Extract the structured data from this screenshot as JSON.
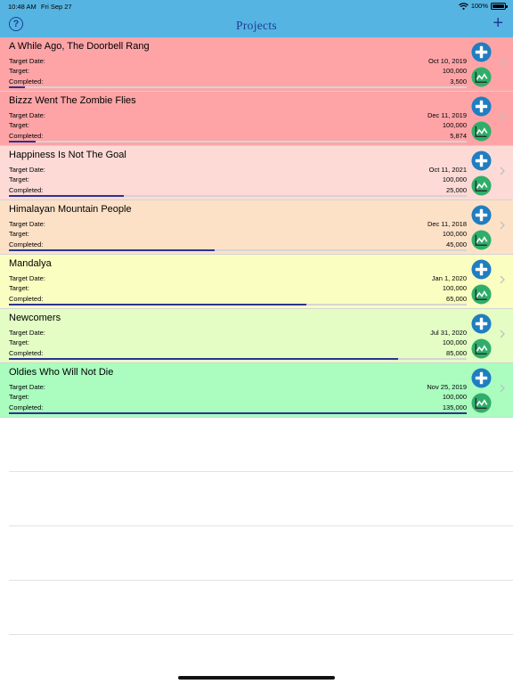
{
  "status_bar": {
    "time": "10:48 AM",
    "date": "Fri Sep 27",
    "battery": "100%"
  },
  "nav": {
    "title": "Projects",
    "help_icon": "question-circle-icon",
    "add_icon": "plus-icon"
  },
  "labels": {
    "target_date": "Target Date:",
    "target": "Target:",
    "completed": "Completed:"
  },
  "colors": {
    "header": "#56b4e2",
    "nav_tint": "#1e3a96",
    "progress_fill": "#2b3490",
    "progress_track": "#d4d4d4",
    "plus_button": "#1f7ec1",
    "chart_button": "#2fae6a"
  },
  "projects": [
    {
      "title": "A While Ago, The Doorbell Rang",
      "target_date": "Oct 10, 2019",
      "target": "100,000",
      "completed": "3,500",
      "progress": 0.035,
      "bg": "#fea4a6"
    },
    {
      "title": "Bizzz Went The Zombie Flies",
      "target_date": "Dec 11, 2019",
      "target": "100,000",
      "completed": "5,874",
      "progress": 0.05874,
      "bg": "#fea4a6"
    },
    {
      "title": "Happiness Is Not The Goal",
      "target_date": "Oct 11, 2021",
      "target": "100,000",
      "completed": "25,000",
      "progress": 0.25,
      "bg": "#fddad6"
    },
    {
      "title": "Himalayan Mountain People",
      "target_date": "Dec 11, 2018",
      "target": "100,000",
      "completed": "45,000",
      "progress": 0.45,
      "bg": "#fde1c7"
    },
    {
      "title": "Mandalya",
      "target_date": "Jan 1, 2020",
      "target": "100,000",
      "completed": "65,000",
      "progress": 0.65,
      "bg": "#fbfec1"
    },
    {
      "title": "Newcomers",
      "target_date": "Jul 31, 2020",
      "target": "100,000",
      "completed": "85,000",
      "progress": 0.85,
      "bg": "#e3fdc5"
    },
    {
      "title": "Oldies Who Will Not Die",
      "target_date": "Nov 25, 2019",
      "target": "100,000",
      "completed": "135,000",
      "progress": 1.0,
      "bg": "#aafdbf"
    }
  ]
}
